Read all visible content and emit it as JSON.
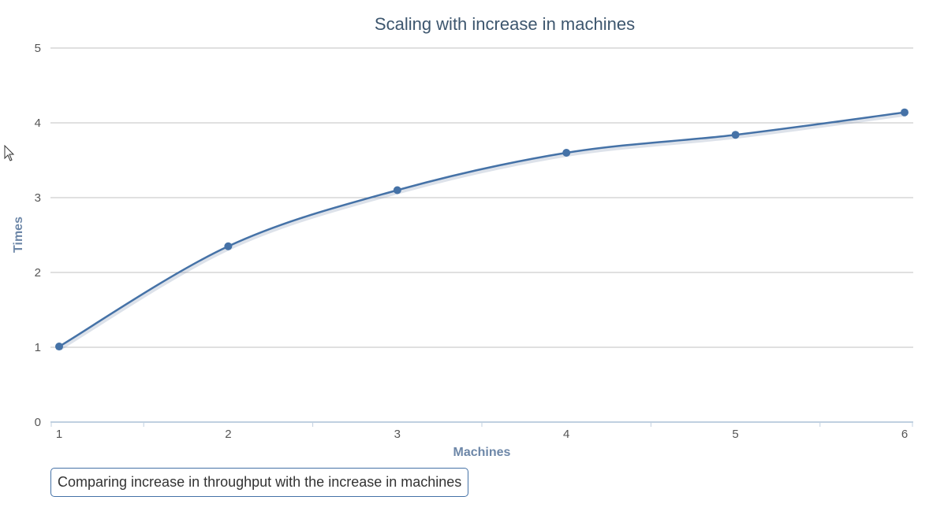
{
  "chart_data": {
    "type": "line",
    "title": "Scaling with increase in machines",
    "xlabel": "Machines",
    "ylabel": "Times",
    "x": [
      1,
      2,
      3,
      4,
      5,
      6
    ],
    "series": [
      {
        "values": [
          1.01,
          2.35,
          3.1,
          3.6,
          3.84,
          4.14
        ]
      }
    ],
    "xlim": [
      1,
      6
    ],
    "ylim": [
      0,
      5
    ],
    "xticks": [
      "1",
      "2",
      "3",
      "4",
      "5",
      "6"
    ],
    "yticks": [
      "0",
      "1",
      "2",
      "3",
      "4",
      "5"
    ],
    "grid": true,
    "smooth": true,
    "series_color": "#4572a7"
  },
  "caption": "Comparing increase in throughput with the increase in machines"
}
